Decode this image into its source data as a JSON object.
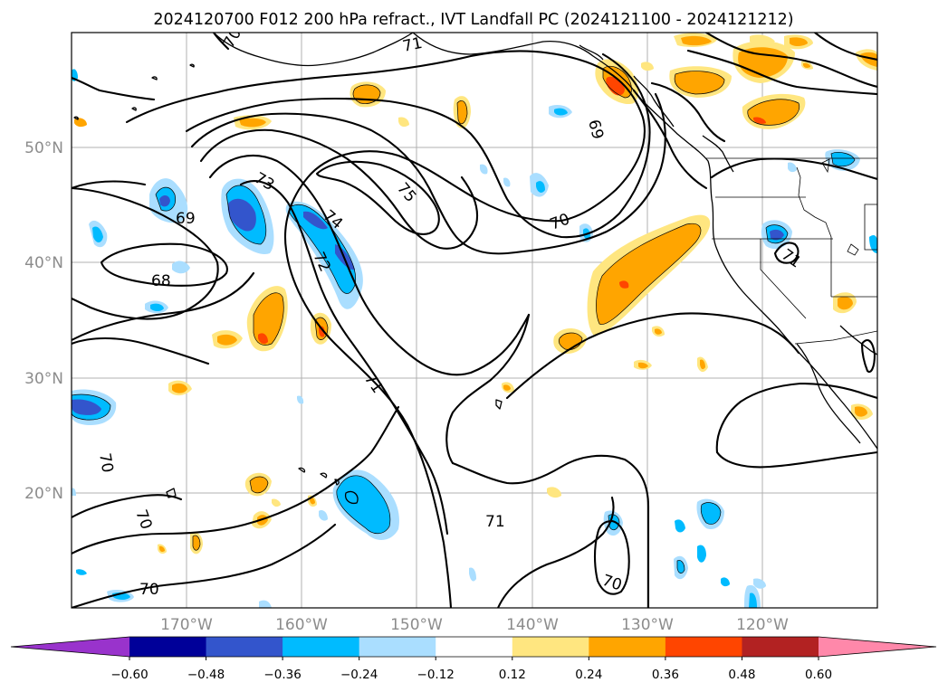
{
  "title": "2024120700 F012 200 hPa refract., IVT Landfall PC (2024121100 - 2024121212)",
  "x_ticks": [
    "170°W",
    "160°W",
    "150°W",
    "140°W",
    "130°W",
    "120°W"
  ],
  "y_ticks": [
    "50°N",
    "40°N",
    "30°N",
    "20°N"
  ],
  "colorbar": {
    "ticks": [
      "−0.60",
      "−0.48",
      "−0.36",
      "−0.24",
      "−0.12",
      "0.12",
      "0.24",
      "0.36",
      "0.48",
      "0.60"
    ],
    "tick_values": [
      -0.6,
      -0.48,
      -0.36,
      -0.24,
      -0.12,
      0.12,
      0.24,
      0.36,
      0.48,
      0.6
    ],
    "colors": [
      "#9933cc",
      "#000099",
      "#3355cc",
      "#00bbff",
      "#aadeff",
      "#ffffff",
      "#ffe680",
      "#ffa500",
      "#ff4500",
      "#b22222",
      "#ff88aa"
    ],
    "extend": "both"
  },
  "contour_labels": [
    "70",
    "71",
    "69",
    "73",
    "75",
    "74",
    "72",
    "69",
    "68",
    "70",
    "71",
    "70",
    "70",
    "71",
    "70",
    "70",
    "71"
  ],
  "map_extent": {
    "lon": [
      -180,
      -110
    ],
    "lat": [
      10,
      60
    ]
  },
  "gridlines": true
}
